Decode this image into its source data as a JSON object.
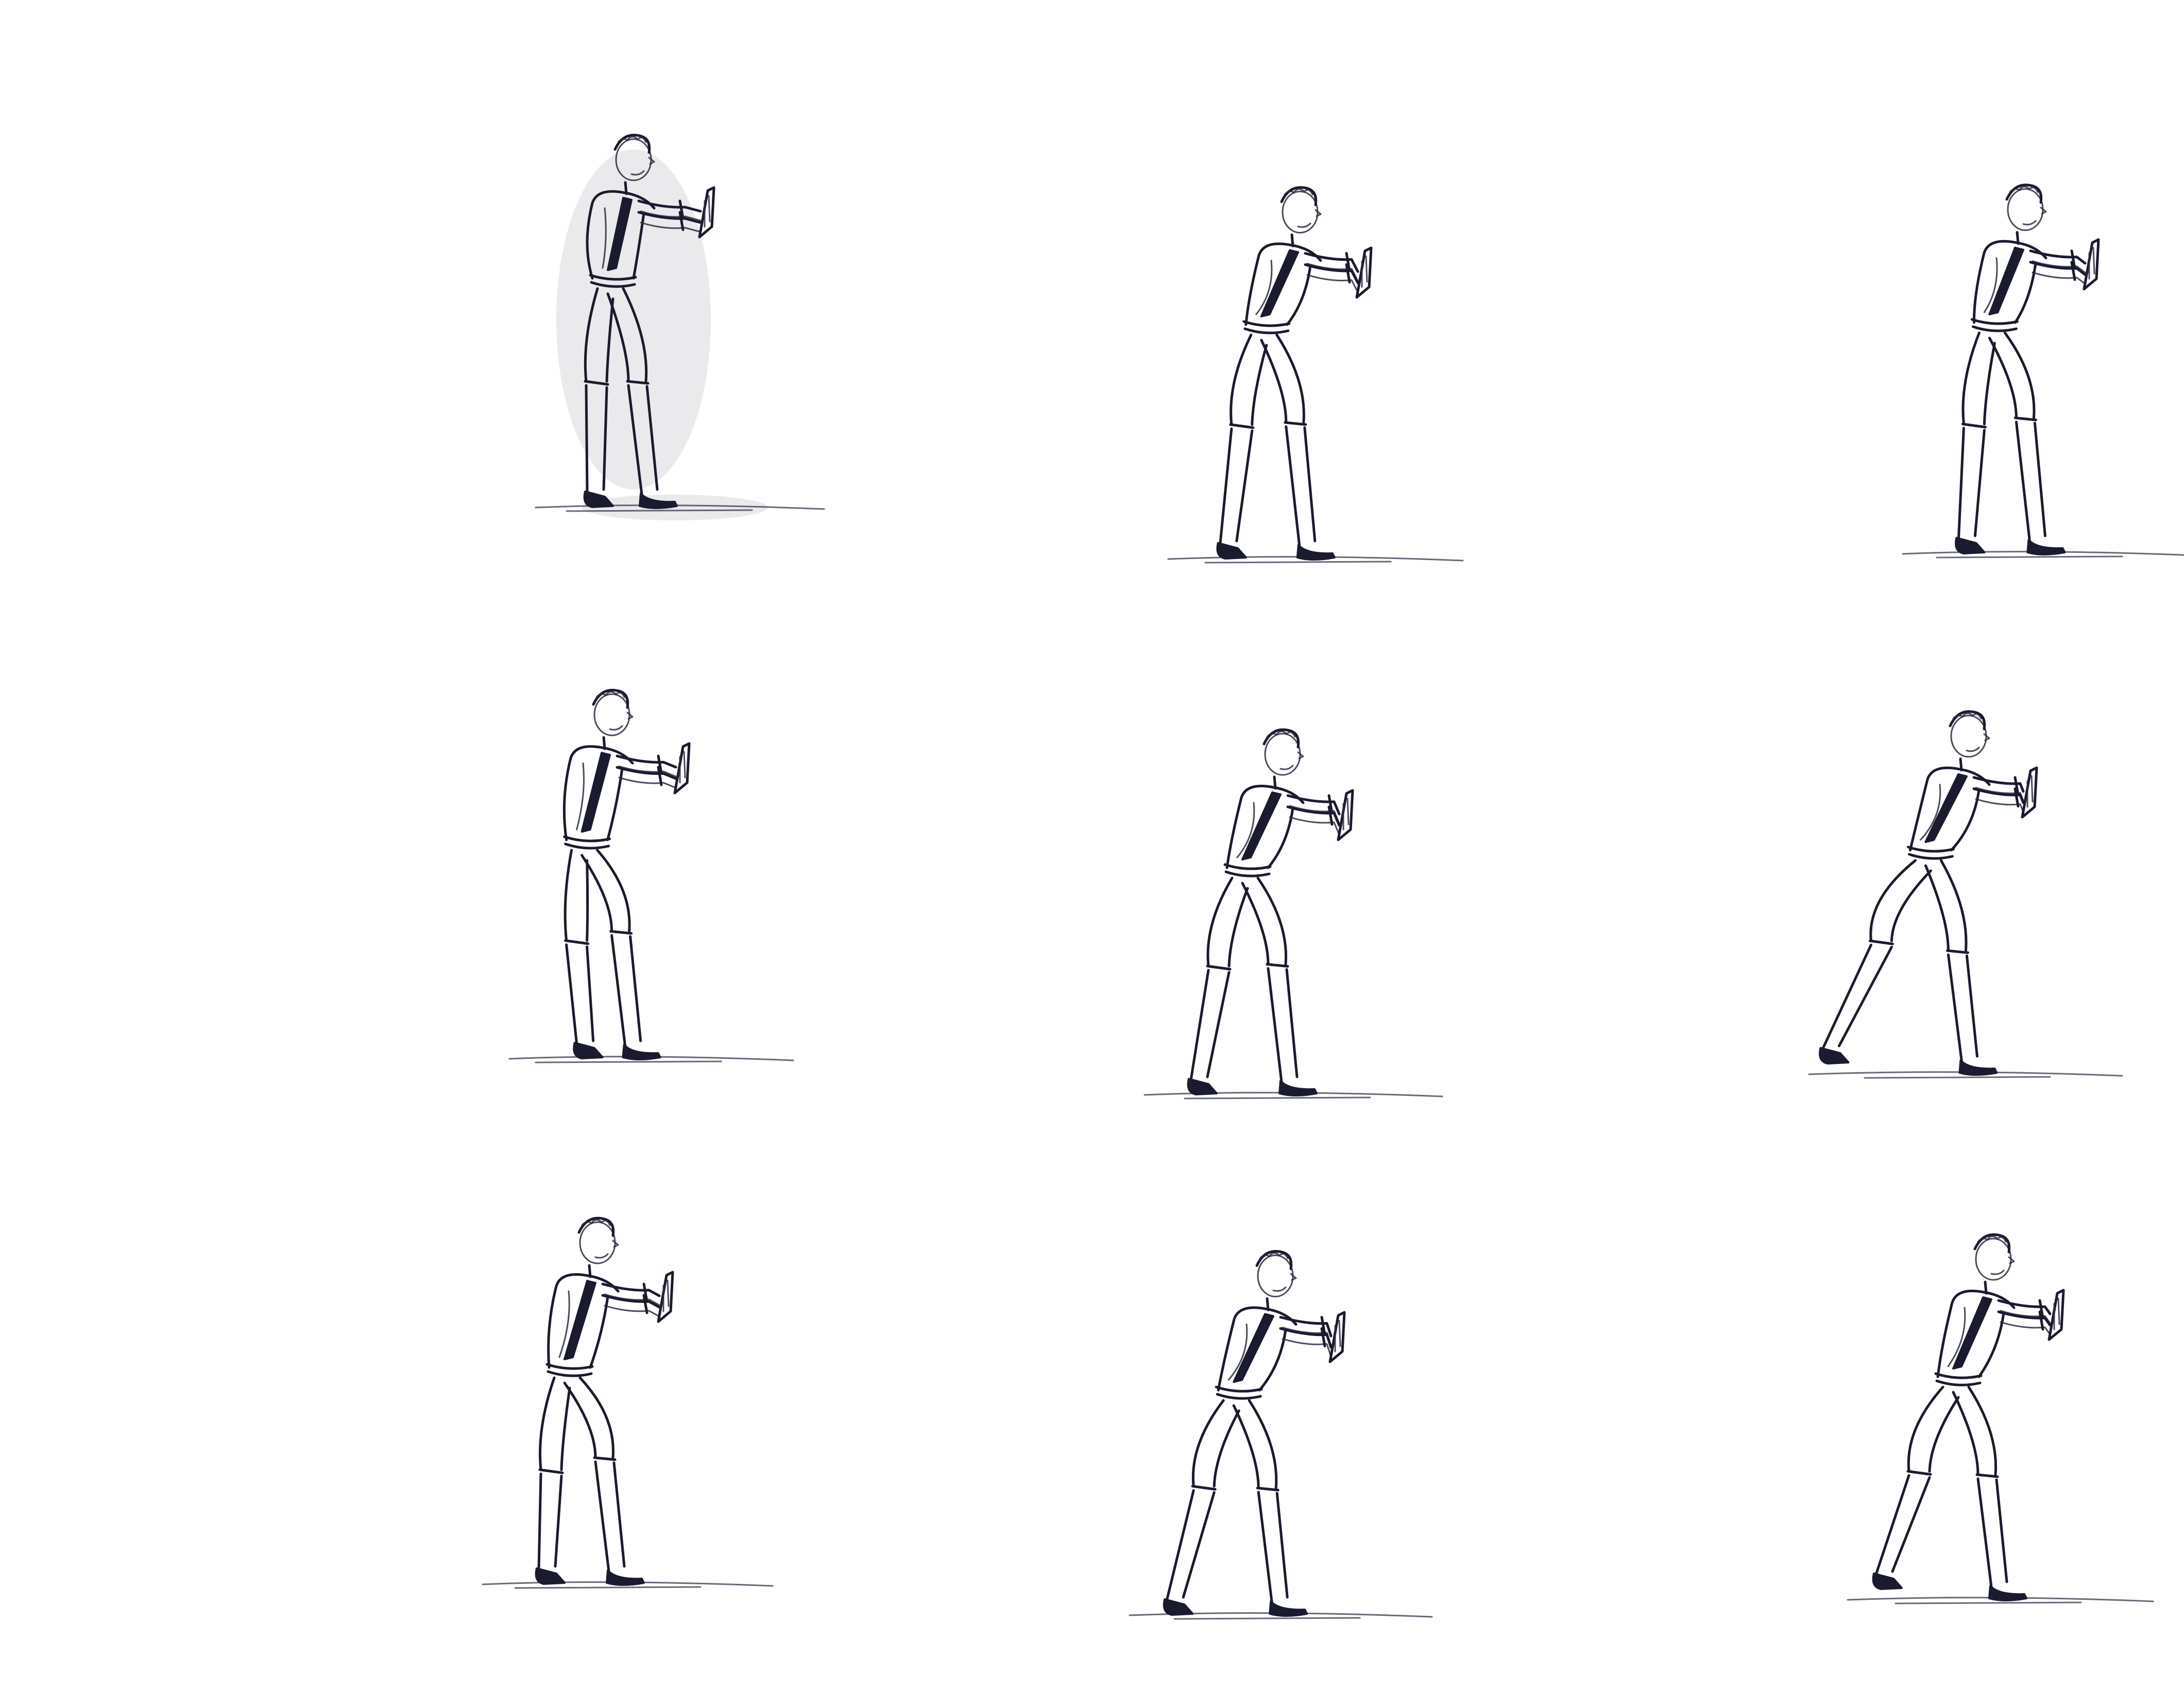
{
  "sheet": {
    "background": "#ffffff",
    "ink_color": "#1b1b2f",
    "description_label": ""
  },
  "frames": [
    {
      "pose": "standing-push"
    },
    {
      "pose": "leaning-push"
    },
    {
      "pose": "bent-knee-push"
    },
    {
      "pose": "crouch-push-lift"
    },
    {
      "pose": "wide-stance-push"
    },
    {
      "pose": "lunge-push-back-leg"
    },
    {
      "pose": "squat-push"
    },
    {
      "pose": "lean-lunge-push"
    },
    {
      "pose": "stride-push"
    }
  ]
}
